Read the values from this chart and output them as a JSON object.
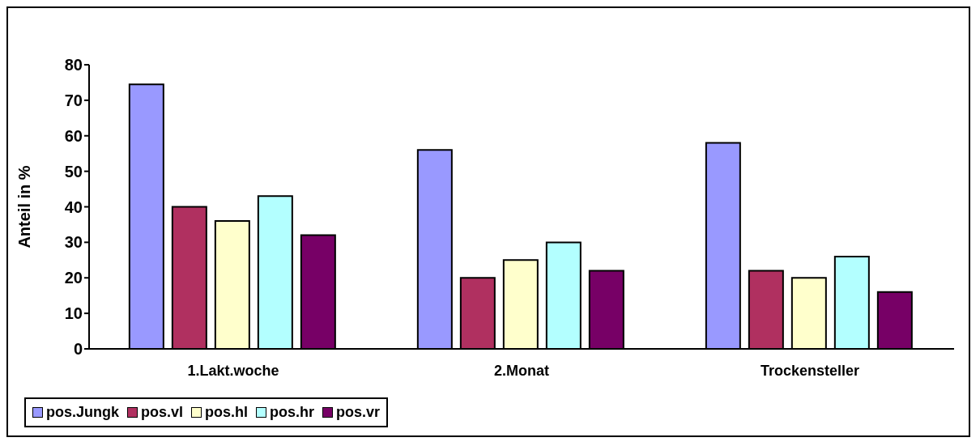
{
  "chart_data": {
    "type": "bar",
    "ylabel": "Anteil in %",
    "categories": [
      "1.Lakt.woche",
      "2.Monat",
      "Trockensteller"
    ],
    "series": [
      {
        "name": "pos.Jungk",
        "color": "#9999ff",
        "values": [
          74.5,
          56,
          58
        ]
      },
      {
        "name": "pos.vl",
        "color": "#b03060",
        "values": [
          40,
          20,
          22
        ]
      },
      {
        "name": "pos.hl",
        "color": "#ffffcc",
        "values": [
          36,
          25,
          20
        ]
      },
      {
        "name": "pos.hr",
        "color": "#b3ffff",
        "values": [
          43,
          30,
          26
        ]
      },
      {
        "name": "pos.vr",
        "color": "#770066",
        "values": [
          32,
          22,
          16
        ]
      }
    ],
    "ylim": [
      0,
      80
    ],
    "yticks": [
      0,
      10,
      20,
      30,
      40,
      50,
      60,
      70,
      80
    ],
    "legend": "bottom"
  }
}
